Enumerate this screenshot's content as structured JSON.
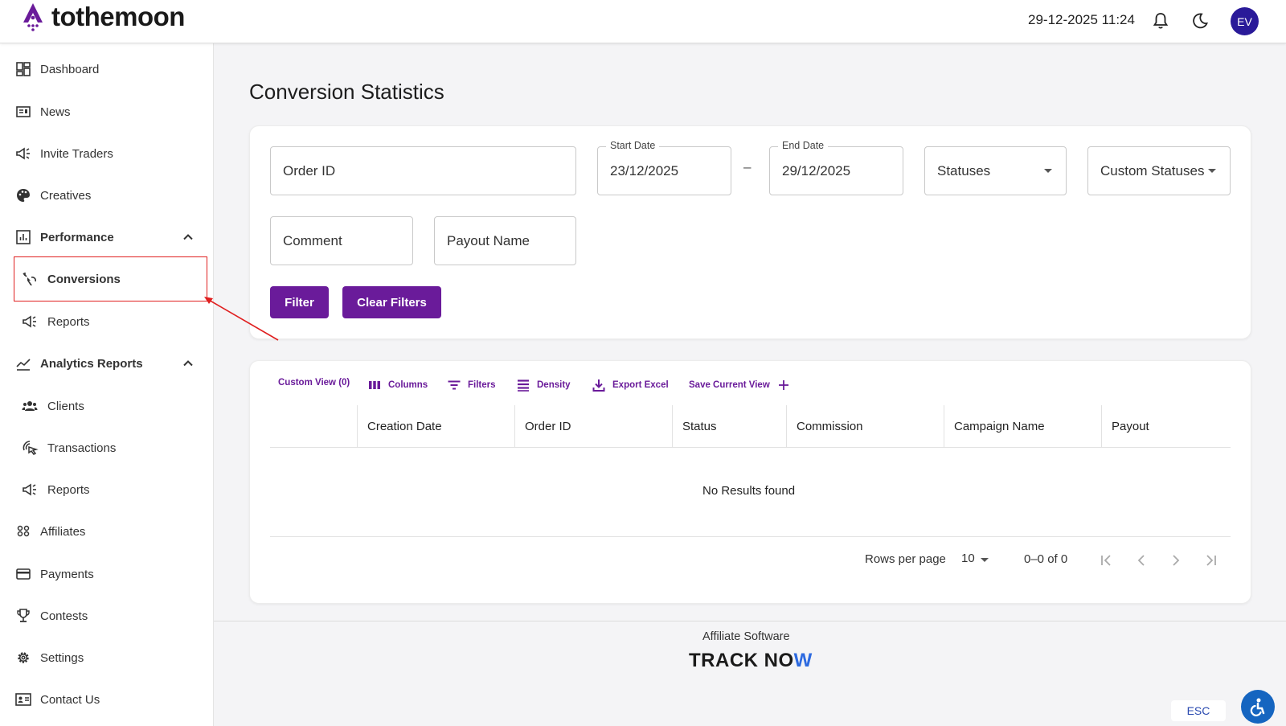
{
  "header": {
    "logo_text": "tothemoon",
    "datetime": "29-12-2025 11:24",
    "avatar_initials": "EV"
  },
  "sidebar": {
    "items": [
      {
        "label": "Dashboard",
        "icon": "dashboard-icon"
      },
      {
        "label": "News",
        "icon": "news-icon"
      },
      {
        "label": "Invite Traders",
        "icon": "megaphone-icon"
      },
      {
        "label": "Creatives",
        "icon": "palette-icon"
      },
      {
        "label": "Performance",
        "icon": "chart-box-icon"
      },
      {
        "label": "Conversions",
        "icon": "conversions-icon"
      },
      {
        "label": "Reports",
        "icon": "megaphone-icon"
      },
      {
        "label": "Analytics Reports",
        "icon": "trend-icon"
      },
      {
        "label": "Clients",
        "icon": "group-icon"
      },
      {
        "label": "Transactions",
        "icon": "touch-icon"
      },
      {
        "label": "Reports",
        "icon": "megaphone-icon"
      },
      {
        "label": "Affiliates",
        "icon": "people-icon"
      },
      {
        "label": "Payments",
        "icon": "card-icon"
      },
      {
        "label": "Contests",
        "icon": "trophy-icon"
      },
      {
        "label": "Settings",
        "icon": "gear-icon"
      },
      {
        "label": "Contact Us",
        "icon": "contact-icon"
      }
    ]
  },
  "main": {
    "title": "Conversion Statistics",
    "filters": {
      "order_id_placeholder": "Order ID",
      "start_date_label": "Start Date",
      "start_date_value": "23/12/2025",
      "date_separator": "–",
      "end_date_label": "End Date",
      "end_date_value": "29/12/2025",
      "statuses_placeholder": "Statuses",
      "custom_statuses_placeholder": "Custom Statuses",
      "comment_placeholder": "Comment",
      "payout_name_placeholder": "Payout Name",
      "filter_button": "Filter",
      "clear_button": "Clear Filters"
    },
    "toolbar": {
      "custom_view": "Custom View (0)",
      "columns": "Columns",
      "filters": "Filters",
      "density": "Density",
      "export": "Export Excel",
      "save_view": "Save Current View"
    },
    "table": {
      "columns": [
        "Creation Date",
        "Order ID",
        "Status",
        "Commission",
        "Campaign Name",
        "Payout"
      ],
      "empty_text": "No Results found"
    },
    "pagination": {
      "rows_per_page_label": "Rows per page",
      "rows_per_page_value": "10",
      "range": "0–0 of 0"
    }
  },
  "footer": {
    "text": "Affiliate Software",
    "brand_part1": "TRACK NO",
    "brand_part2": "W"
  },
  "widgets": {
    "esc_label": "ESC"
  },
  "colors": {
    "primary": "#6a1b9a",
    "avatar": "#2a1a99",
    "highlight": "#e02020"
  }
}
